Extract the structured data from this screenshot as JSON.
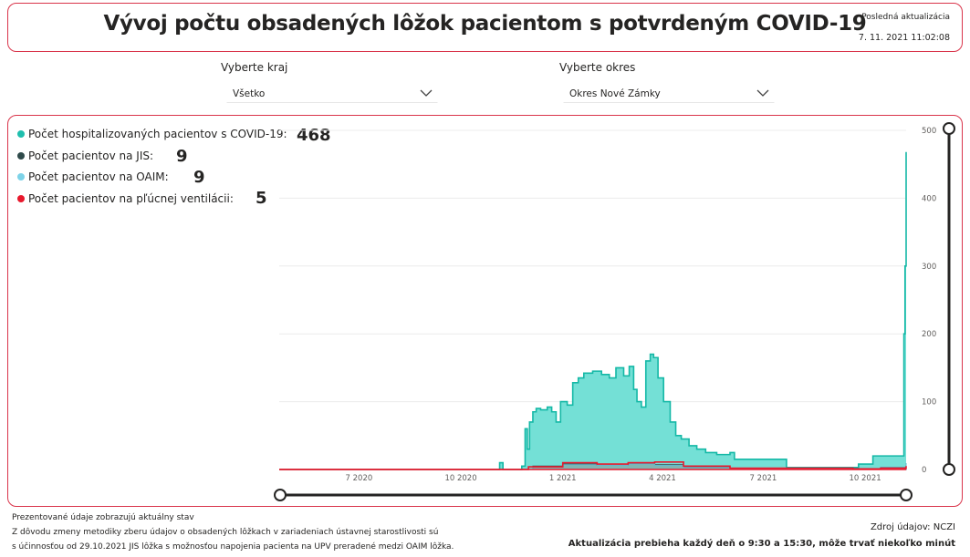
{
  "header": {
    "title": "Vývoj počtu obsadených lôžok pacientom s potvrdeným COVID-19",
    "last_update_label": "Posledná aktualizácia",
    "last_update_value": "7. 11. 2021 11:02:08"
  },
  "filters": {
    "region": {
      "label": "Vyberte kraj",
      "value": "Všetko"
    },
    "district": {
      "label": "Vyberte okres",
      "value": "Okres Nové Zámky"
    }
  },
  "legend": [
    {
      "label": "Počet hospitalizovaných pacientov s COVID-19:",
      "value": "468",
      "color": "#1fbfae"
    },
    {
      "label": "Počet pacientov na JIS:",
      "value": "9",
      "color": "#2f4a4a"
    },
    {
      "label": "Počet pacientov na OAIM:",
      "value": "9",
      "color": "#7dd3e8"
    },
    {
      "label": "Počet pacientov na pľúcnej ventilácii:",
      "value": "5",
      "color": "#e8182c"
    }
  ],
  "colors": {
    "accent_border": "#d9344a",
    "hospitalized_fill": "#74e0d6",
    "hospitalized_line": "#14b8a6",
    "icu_line": "#3b4a4a",
    "ventilation_line": "#e8182c"
  },
  "chart_data": {
    "type": "area",
    "x_tick_labels": [
      "7 2020",
      "10 2020",
      "1 2021",
      "4 2021",
      "7 2021",
      "10 2021"
    ],
    "x_ticks": [
      "2020-07-01",
      "2020-10-01",
      "2021-01-01",
      "2021-04-01",
      "2021-07-01",
      "2021-10-01"
    ],
    "x_range": [
      "2020-04-20",
      "2021-11-07"
    ],
    "y_tick_labels": [
      "500",
      "400",
      "300",
      "200",
      "100",
      "0"
    ],
    "y_ticks": [
      500,
      400,
      300,
      200,
      100,
      0
    ],
    "ylim": [
      0,
      500
    ],
    "grid": true,
    "y_axis_position": "right",
    "series": [
      {
        "key": "hospitalized",
        "points": [
          [
            "2020-04-20",
            0
          ],
          [
            "2020-11-01",
            0
          ],
          [
            "2020-11-05",
            10
          ],
          [
            "2020-11-08",
            0
          ],
          [
            "2020-11-20",
            0
          ],
          [
            "2020-11-25",
            5
          ],
          [
            "2020-11-28",
            60
          ],
          [
            "2020-11-30",
            30
          ],
          [
            "2020-12-02",
            70
          ],
          [
            "2020-12-05",
            85
          ],
          [
            "2020-12-08",
            90
          ],
          [
            "2020-12-12",
            88
          ],
          [
            "2020-12-18",
            92
          ],
          [
            "2020-12-22",
            85
          ],
          [
            "2020-12-26",
            70
          ],
          [
            "2020-12-30",
            100
          ],
          [
            "2021-01-05",
            95
          ],
          [
            "2021-01-10",
            128
          ],
          [
            "2021-01-15",
            135
          ],
          [
            "2021-01-20",
            142
          ],
          [
            "2021-01-28",
            145
          ],
          [
            "2021-02-05",
            140
          ],
          [
            "2021-02-12",
            135
          ],
          [
            "2021-02-18",
            150
          ],
          [
            "2021-02-25",
            138
          ],
          [
            "2021-03-02",
            152
          ],
          [
            "2021-03-06",
            118
          ],
          [
            "2021-03-09",
            100
          ],
          [
            "2021-03-13",
            92
          ],
          [
            "2021-03-17",
            160
          ],
          [
            "2021-03-21",
            170
          ],
          [
            "2021-03-24",
            165
          ],
          [
            "2021-03-28",
            135
          ],
          [
            "2021-04-02",
            100
          ],
          [
            "2021-04-08",
            70
          ],
          [
            "2021-04-13",
            50
          ],
          [
            "2021-04-18",
            45
          ],
          [
            "2021-04-25",
            35
          ],
          [
            "2021-05-02",
            30
          ],
          [
            "2021-05-10",
            25
          ],
          [
            "2021-05-20",
            22
          ],
          [
            "2021-06-01",
            25
          ],
          [
            "2021-06-05",
            15
          ],
          [
            "2021-07-20",
            15
          ],
          [
            "2021-07-22",
            3
          ],
          [
            "2021-09-10",
            3
          ],
          [
            "2021-09-25",
            8
          ],
          [
            "2021-10-06",
            8
          ],
          [
            "2021-10-08",
            20
          ],
          [
            "2021-11-04",
            20
          ],
          [
            "2021-11-05",
            200
          ],
          [
            "2021-11-06",
            300
          ],
          [
            "2021-11-07",
            468
          ]
        ]
      },
      {
        "key": "icu",
        "points": [
          [
            "2020-04-20",
            0
          ],
          [
            "2020-11-25",
            0
          ],
          [
            "2020-12-05",
            5
          ],
          [
            "2021-01-01",
            8
          ],
          [
            "2021-02-01",
            6
          ],
          [
            "2021-03-01",
            9
          ],
          [
            "2021-03-25",
            7
          ],
          [
            "2021-04-20",
            4
          ],
          [
            "2021-06-01",
            1
          ],
          [
            "2021-09-20",
            1
          ],
          [
            "2021-10-15",
            3
          ],
          [
            "2021-11-07",
            9
          ]
        ]
      },
      {
        "key": "oaim",
        "points": [
          [
            "2020-04-20",
            0
          ],
          [
            "2020-11-25",
            0
          ],
          [
            "2020-12-05",
            4
          ],
          [
            "2021-01-01",
            7
          ],
          [
            "2021-02-01",
            6
          ],
          [
            "2021-03-01",
            8
          ],
          [
            "2021-03-25",
            6
          ],
          [
            "2021-04-20",
            3
          ],
          [
            "2021-06-01",
            1
          ],
          [
            "2021-09-20",
            1
          ],
          [
            "2021-10-15",
            3
          ],
          [
            "2021-11-07",
            9
          ]
        ]
      },
      {
        "key": "ventilation",
        "points": [
          [
            "2020-04-20",
            0
          ],
          [
            "2020-11-25",
            0
          ],
          [
            "2020-12-01",
            4
          ],
          [
            "2021-01-01",
            10
          ],
          [
            "2021-02-01",
            8
          ],
          [
            "2021-03-01",
            10
          ],
          [
            "2021-03-25",
            11
          ],
          [
            "2021-04-20",
            5
          ],
          [
            "2021-06-01",
            2
          ],
          [
            "2021-09-20",
            1
          ],
          [
            "2021-10-15",
            2
          ],
          [
            "2021-11-07",
            5
          ]
        ]
      }
    ]
  },
  "footer": {
    "note_line1": "Prezentované údaje zobrazujú aktuálny stav",
    "note_line2": "Z dôvodu zmeny metodiky zberu údajov o obsadených lôžkach v zariadeniach ústavnej starostlivosti sú",
    "note_line3": "s účinnosťou od 29.10.2021 JIS lôžka s možnosťou napojenia pacienta na UPV preradené medzi OAIM lôžka.",
    "source": "Zdroj údajov: NCZI",
    "refresh_note": "Aktualizácia prebieha každý deň o 9:30 a 15:30, môže trvať niekoľko minút"
  }
}
